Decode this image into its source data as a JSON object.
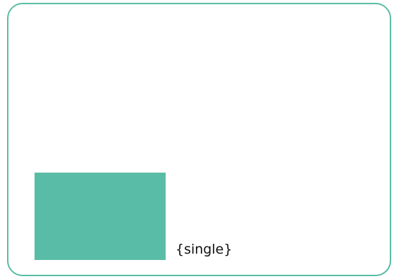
{
  "colors": {
    "accent": "#59bca6",
    "text": "#111111",
    "background": "#ffffff"
  },
  "card": {
    "swatch_label": "{single}"
  }
}
